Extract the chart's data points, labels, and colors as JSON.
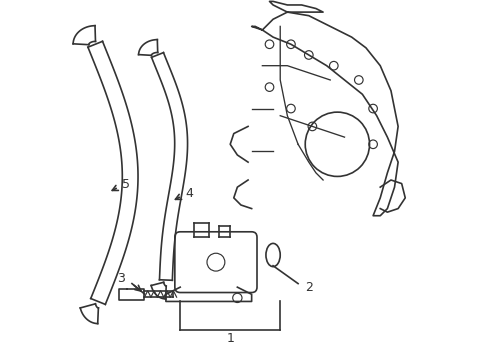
{
  "background_color": "#ffffff",
  "line_color": "#333333",
  "line_width": 1.2,
  "label_fontsize": 9
}
